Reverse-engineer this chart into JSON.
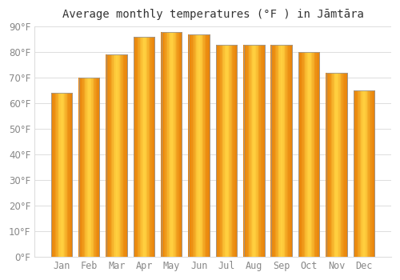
{
  "title": "Average monthly temperatures (°F ) in Jāmtāra",
  "months": [
    "Jan",
    "Feb",
    "Mar",
    "Apr",
    "May",
    "Jun",
    "Jul",
    "Aug",
    "Sep",
    "Oct",
    "Nov",
    "Dec"
  ],
  "values": [
    64,
    70,
    79,
    86,
    88,
    87,
    83,
    83,
    83,
    80,
    72,
    65
  ],
  "bar_color_left": "#E8820A",
  "bar_color_center": "#FFD040",
  "bar_color_right": "#E8820A",
  "bar_edge_color": "#999999",
  "background_color": "#ffffff",
  "plot_bg_color": "#ffffff",
  "grid_color": "#dddddd",
  "ylim": [
    0,
    90
  ],
  "yticks": [
    0,
    10,
    20,
    30,
    40,
    50,
    60,
    70,
    80,
    90
  ],
  "title_fontsize": 10,
  "tick_fontsize": 8.5,
  "tick_color": "#888888",
  "bar_width": 0.75
}
